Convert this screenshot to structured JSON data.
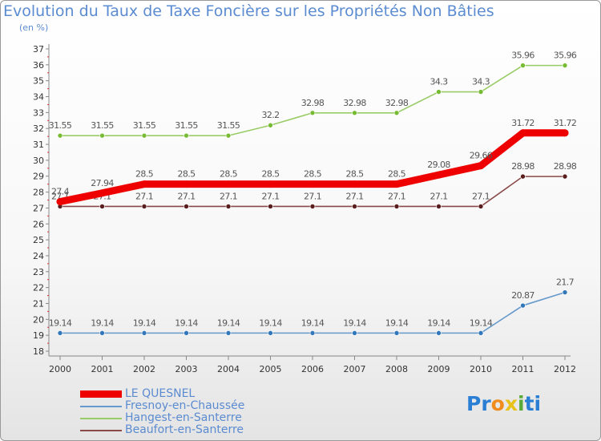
{
  "chart_data": {
    "type": "line",
    "title": "Evolution du Taux de Taxe Foncière sur les Propriétés Non Bâties",
    "unit_label": "(en %)",
    "xlabel": "",
    "ylabel": "",
    "categories": [
      "2000",
      "2001",
      "2002",
      "2003",
      "2004",
      "2005",
      "2006",
      "2007",
      "2008",
      "2009",
      "2010",
      "2011",
      "2012"
    ],
    "y_ticks": [
      18,
      19,
      20,
      21,
      22,
      23,
      24,
      25,
      26,
      27,
      28,
      29,
      30,
      31,
      32,
      33,
      34,
      35,
      36,
      37
    ],
    "ylim": [
      18,
      37
    ],
    "grid": false,
    "series": [
      {
        "name": "Hangest-en-Santerre",
        "color": "#99cc66",
        "marker": "#77bb33",
        "thick": false,
        "values": [
          31.55,
          31.55,
          31.55,
          31.55,
          31.55,
          32.2,
          32.98,
          32.98,
          32.98,
          34.3,
          34.3,
          35.96,
          35.96
        ],
        "labels": [
          "31.55",
          "31.55",
          "31.55",
          "31.55",
          "31.55",
          "32.2",
          "32.98",
          "32.98",
          "32.98",
          "34.3",
          "34.3",
          "35.96",
          "35.96"
        ]
      },
      {
        "name": "Beaufort-en-Santerre",
        "color": "#8b4a4a",
        "marker": "#5a1e1e",
        "thick": false,
        "values": [
          27.1,
          27.1,
          27.1,
          27.1,
          27.1,
          27.1,
          27.1,
          27.1,
          27.1,
          27.1,
          27.1,
          28.98,
          28.98
        ],
        "labels": [
          "27.1",
          "27.1",
          "27.1",
          "27.1",
          "27.1",
          "27.1",
          "27.1",
          "27.1",
          "27.1",
          "27.1",
          "27.1",
          "28.98",
          "28.98"
        ]
      },
      {
        "name": "Fresnoy-en-Chaussée",
        "color": "#6699cc",
        "marker": "#3377bb",
        "thick": false,
        "values": [
          19.14,
          19.14,
          19.14,
          19.14,
          19.14,
          19.14,
          19.14,
          19.14,
          19.14,
          19.14,
          19.14,
          20.87,
          21.7
        ],
        "labels": [
          "19.14",
          "19.14",
          "19.14",
          "19.14",
          "19.14",
          "19.14",
          "19.14",
          "19.14",
          "19.14",
          "19.14",
          "19.14",
          "20.87",
          "21.7"
        ]
      },
      {
        "name": "LE QUESNEL",
        "color": "#ee0000",
        "marker": "#ee0000",
        "thick": true,
        "values": [
          27.4,
          27.94,
          28.5,
          28.5,
          28.5,
          28.5,
          28.5,
          28.5,
          28.5,
          29.08,
          29.66,
          31.72,
          31.72
        ],
        "labels": [
          "27.4",
          "27.94",
          "28.5",
          "28.5",
          "28.5",
          "28.5",
          "28.5",
          "28.5",
          "28.5",
          "29.08",
          "29.66",
          "31.72",
          "31.72"
        ]
      }
    ],
    "legend_order": [
      "LE QUESNEL",
      "Fresnoy-en-Chaussée",
      "Hangest-en-Santerre",
      "Beaufort-en-Santerre"
    ],
    "legend_position": "bottom-left"
  },
  "logo": {
    "text": "Proxiti",
    "letters": [
      "P",
      "r",
      "o",
      "x",
      "i",
      "t",
      "i"
    ],
    "colors": [
      "#2a7fd4",
      "#2a7fd4",
      "#f08c1e",
      "#e8c21a",
      "#5aaa3a",
      "#2a7fd4",
      "#2a7fd4"
    ]
  }
}
